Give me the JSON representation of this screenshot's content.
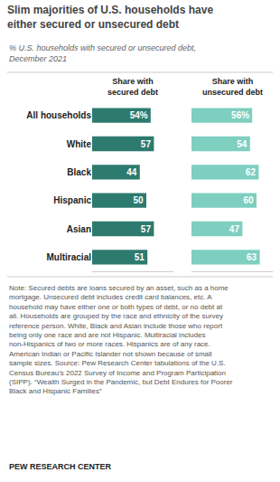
{
  "chart_data": {
    "type": "bar",
    "orientation": "horizontal",
    "title": "Slim majorities of U.S. households have\neither secured or unsecured debt",
    "subtitle": "% U.S. households with secured or unsecured debt,\nDecember 2021",
    "categories": [
      "All households",
      "White",
      "Black",
      "Hispanic",
      "Asian",
      "Multiracial"
    ],
    "series": [
      {
        "name": "Share with\nsecured debt",
        "color": "#2d7a6e",
        "values": [
          54,
          57,
          44,
          50,
          57,
          51
        ],
        "value_labels": [
          "54%",
          "57",
          "44",
          "50",
          "57",
          "51"
        ]
      },
      {
        "name": "Share with\nunsecured debt",
        "color": "#7ecfc0",
        "values": [
          56,
          54,
          62,
          60,
          47,
          63
        ],
        "value_labels": [
          "56%",
          "54",
          "62",
          "60",
          "47",
          "63"
        ]
      }
    ],
    "xlim": [
      0,
      75
    ],
    "data_labels": true,
    "tick_labels": "y",
    "grid": false,
    "annotations": [
      "Note: Secured debts are loans secured by an asset, such as a home mortgage. Unsecured debt includes credit card balances, etc. A household may have either one or both types of debt, or no debt at all. Households are grouped by the race and ethnicity of the survey reference person. White, Black and Asian include those who report being only one race and are not Hispanic. Multiracial includes non-Hispanics of two or more races. Hispanics are of any race. American Indian or Pacific Islander not shown because of small sample sizes. Source: Pew Research Center tabulations of the U.S. Census Bureau’s 2022 Survey of Income and Program Participation (SIPP). “Wealth Surged in the Pandemic, but Debt Endures for Poorer Black and Hispanic Families”",
      "PEW RESEARCH CENTER"
    ]
  }
}
